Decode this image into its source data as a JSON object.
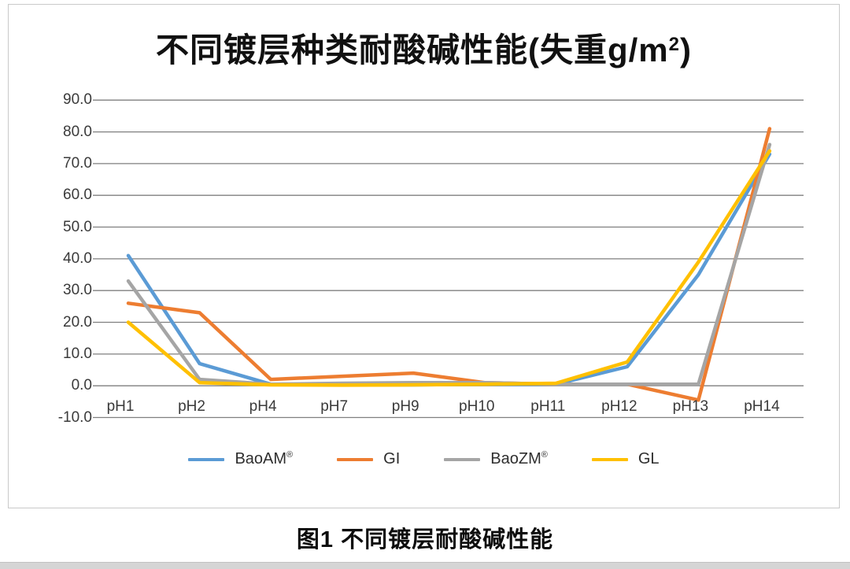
{
  "page": {
    "caption": "图1 不同镀层耐酸碱性能"
  },
  "chart": {
    "title_main": "不同镀层种类耐酸碱性能(失重g/m",
    "title_sup": "2",
    "title_close": ")"
  },
  "chart_data": {
    "type": "line",
    "title": "不同镀层种类耐酸碱性能(失重g/m²)",
    "xlabel": "",
    "ylabel": "",
    "categories": [
      "pH1",
      "pH2",
      "pH4",
      "pH7",
      "pH9",
      "pH10",
      "pH11",
      "pH12",
      "pH13",
      "pH14"
    ],
    "series": [
      {
        "name": "BaoAM®",
        "label": "BaoAM",
        "sup": "®",
        "color": "#5B9BD5",
        "values": [
          41,
          7,
          0.5,
          0.3,
          0.3,
          0.5,
          0.5,
          6,
          35,
          73
        ]
      },
      {
        "name": "GI",
        "label": "GI",
        "sup": "",
        "color": "#ED7D31",
        "values": [
          26,
          23,
          2,
          3,
          4,
          1,
          0.5,
          0.5,
          -4.5,
          81
        ]
      },
      {
        "name": "BaoZM®",
        "label": "BaoZM",
        "sup": "®",
        "color": "#A5A5A5",
        "values": [
          33,
          2,
          0.5,
          0.8,
          1,
          1,
          0.5,
          0.5,
          0.5,
          76
        ]
      },
      {
        "name": "GL",
        "label": "GL",
        "sup": "",
        "color": "#FFC000",
        "values": [
          20,
          1,
          0.3,
          0.2,
          0.3,
          0.5,
          0.8,
          7.5,
          39,
          74
        ]
      }
    ],
    "ylim": [
      -10,
      90
    ],
    "ytick_step": 10,
    "ytick_format": "one_decimal",
    "grid": true,
    "gridline_color": "#7f7f7f",
    "legend_position": "bottom",
    "text_color": "#3a3a3a"
  }
}
